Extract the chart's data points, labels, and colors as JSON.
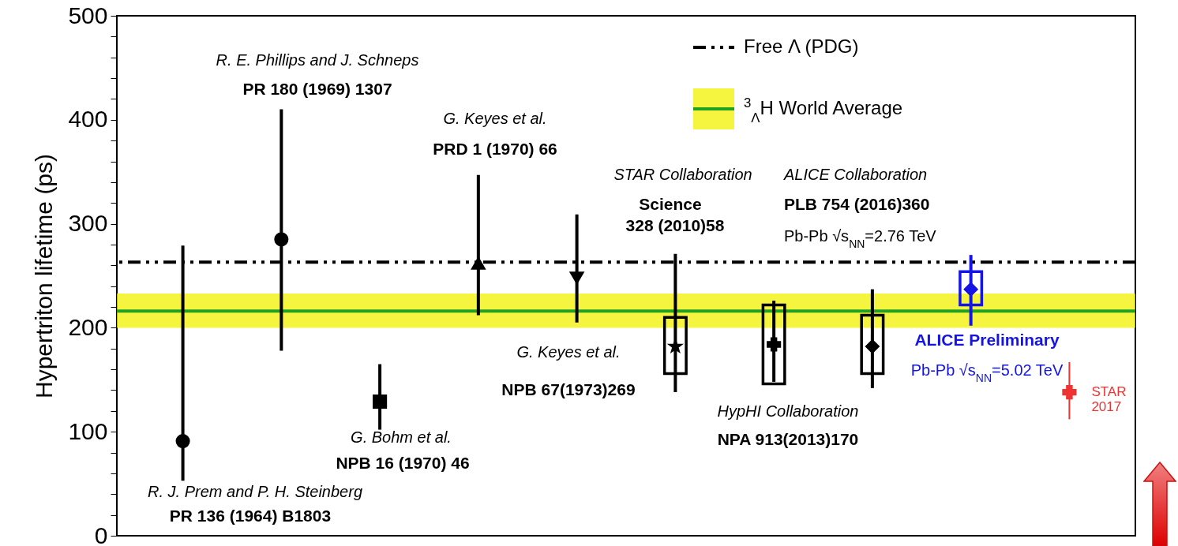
{
  "chart_data": {
    "type": "scatter",
    "ylabel": "Hypertriton lifetime (ps)",
    "categories": [
      null,
      null,
      null,
      null,
      null,
      null,
      null,
      null,
      null,
      null
    ],
    "ylim": [
      0,
      500
    ],
    "yticks": [
      0,
      {
        "value": 20,
        "label": null
      },
      {
        "value": 40,
        "label": null
      },
      {
        "value": 60,
        "label": null
      },
      {
        "value": 80,
        "label": null
      },
      100,
      {
        "value": 120,
        "label": null
      },
      {
        "value": 140,
        "label": null
      },
      {
        "value": 160,
        "label": null
      },
      {
        "value": 180,
        "label": null
      },
      200,
      {
        "value": 220,
        "label": null
      },
      {
        "value": 240,
        "label": null
      },
      {
        "value": 260,
        "label": null
      },
      {
        "value": 280,
        "label": null
      },
      300,
      {
        "value": 320,
        "label": null
      },
      {
        "value": 340,
        "label": null
      },
      {
        "value": 360,
        "label": null
      },
      {
        "value": 380,
        "label": null
      },
      400,
      {
        "value": 420,
        "label": null
      },
      {
        "value": 440,
        "label": null
      },
      {
        "value": 460,
        "label": null
      },
      {
        "value": 480,
        "label": null
      },
      500
    ],
    "tick_labels": "y",
    "grid": false,
    "legend": "top right",
    "series": [
      {
        "type": "bar",
        "colors": [
          null,
          null,
          null,
          null,
          null,
          "#000000",
          "#000000",
          "#000000",
          "#1414e6",
          null
        ],
        "base": [
          null,
          null,
          null,
          null,
          null,
          156,
          146,
          156,
          222,
          null
        ],
        "values": [
          null,
          null,
          null,
          null,
          null,
          54,
          76,
          56,
          32,
          null
        ]
      },
      {
        "color": "#000000",
        "marker": "circle",
        "values": [
          91,
          null,
          null,
          null,
          null,
          null,
          null,
          null,
          null,
          null
        ],
        "errors": [
          [
            53,
            279
          ],
          null,
          null,
          null,
          null,
          null,
          null,
          null,
          null,
          null
        ]
      },
      {
        "color": "#000000",
        "marker": "circle",
        "values": [
          null,
          285,
          null,
          null,
          null,
          null,
          null,
          null,
          null,
          null
        ],
        "errors": [
          null,
          [
            178,
            410
          ],
          null,
          null,
          null,
          null,
          null,
          null,
          null,
          null
        ]
      },
      {
        "color": "#000000",
        "marker": "square",
        "values": [
          null,
          null,
          129,
          null,
          null,
          null,
          null,
          null,
          null,
          null
        ],
        "errors": [
          null,
          null,
          [
            102,
            165
          ],
          null,
          null,
          null,
          null,
          null,
          null,
          null
        ]
      },
      {
        "color": "#000000",
        "marker": "triangle",
        "values": [
          null,
          null,
          null,
          262,
          null,
          null,
          null,
          null,
          null,
          null
        ],
        "errors": [
          null,
          null,
          null,
          [
            212,
            347
          ],
          null,
          null,
          null,
          null,
          null,
          null
        ]
      },
      {
        "color": "#000000",
        "marker": "triangle-down",
        "values": [
          null,
          null,
          null,
          null,
          248,
          null,
          null,
          null,
          null,
          null
        ],
        "errors": [
          null,
          null,
          null,
          null,
          [
            205,
            309
          ],
          null,
          null,
          null,
          null,
          null
        ]
      },
      {
        "color": "#000000",
        "marker": "star",
        "values": [
          null,
          null,
          null,
          null,
          null,
          182,
          null,
          null,
          null,
          null
        ],
        "errors": [
          null,
          null,
          null,
          null,
          null,
          [
            138,
            271
          ],
          null,
          null,
          null,
          null
        ]
      },
      {
        "color": "#000000",
        "marker": "cross",
        "values": [
          null,
          null,
          null,
          null,
          null,
          null,
          184,
          null,
          null,
          null
        ],
        "errors": [
          null,
          null,
          null,
          null,
          null,
          null,
          [
            148,
            226
          ],
          null,
          null,
          null
        ]
      },
      {
        "color": "#000000",
        "marker": "diamond",
        "values": [
          null,
          null,
          null,
          null,
          null,
          null,
          null,
          182,
          null,
          null
        ],
        "errors": [
          null,
          null,
          null,
          null,
          null,
          null,
          null,
          [
            142,
            237
          ],
          null,
          null
        ]
      },
      {
        "color": "#1414e6",
        "marker": "diamond",
        "values": [
          null,
          null,
          null,
          null,
          null,
          null,
          null,
          null,
          237,
          null
        ],
        "errors": [
          null,
          null,
          null,
          null,
          null,
          null,
          null,
          null,
          [
            202,
            270
          ],
          null
        ]
      },
      {
        "name": "STAR 2017",
        "color": "#ee3333",
        "marker": "cross",
        "values": [
          null,
          null,
          null,
          null,
          null,
          null,
          null,
          null,
          null,
          138
        ],
        "errors": [
          null,
          null,
          null,
          null,
          null,
          null,
          null,
          null,
          null,
          [
            112,
            167
          ]
        ]
      }
    ],
    "ref_lines": [
      {
        "axis": "y",
        "value": 263,
        "label": "Free Λ (PDG)",
        "color": "#000000",
        "line_style": "dashed"
      },
      {
        "axis": "y",
        "value": 216,
        "label": "$^{3}$$_{Λ}$H World Average",
        "color": "#22a022",
        "line_style": "solid"
      }
    ],
    "bands": [
      {
        "axis": "y",
        "from": 200,
        "to": 233,
        "color": "#f2f200"
      }
    ],
    "annotations": [
      "R. E. Phillips and J. Schneps",
      "PR 180 (1969) 1307",
      "G. Keyes et al.",
      "PRD 1 (1970) 66",
      "STAR Collaboration",
      "Science",
      "328 (2010)58",
      "ALICE Collaboration",
      "PLB 754 (2016)360",
      "Pb-Pb √s$_{NN}$=2.76 TeV",
      "G. Keyes et al.",
      "NPB 67(1973)269",
      "HypHI Collaboration",
      "NPA 913(2013)170",
      "G. Bohm et al.",
      "NPB 16 (1970) 46",
      "R. J. Prem and P. H. Steinberg",
      "PR 136 (1964) B1803",
      "ALICE Preliminary",
      "Pb-Pb √s$_{NN}$=5.02 TeV"
    ]
  }
}
